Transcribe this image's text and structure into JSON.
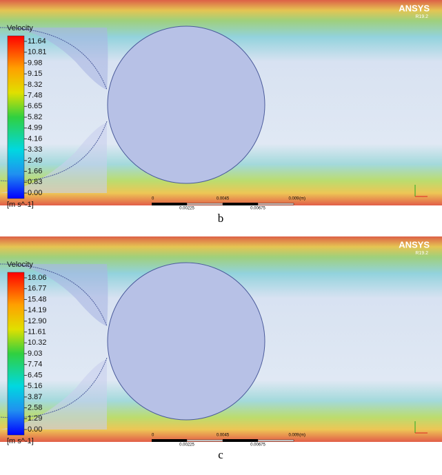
{
  "panels": [
    {
      "legend": {
        "title": "Velocity",
        "ticks": [
          "11.64",
          "10.81",
          "9.98",
          "9.15",
          "8.32",
          "7.48",
          "6.65",
          "5.82",
          "4.99",
          "4.16",
          "3.33",
          "2.49",
          "1.66",
          "0.83",
          "0.00"
        ],
        "unit": "[m s^-1]"
      },
      "logo": "ANSYS",
      "version": "R19.2",
      "scale": {
        "labels": [
          "0",
          "0.0045",
          "0.009",
          "(m)"
        ],
        "sublabels": [
          "0.00225",
          "0.00675"
        ]
      },
      "caption": "b"
    },
    {
      "legend": {
        "title": "Velocity",
        "ticks": [
          "18.06",
          "16.77",
          "15.48",
          "14.19",
          "12.90",
          "11.61",
          "10.32",
          "9.03",
          "7.74",
          "6.45",
          "5.16",
          "3.87",
          "2.58",
          "1.29",
          "0.00"
        ],
        "unit": "[m s^-1]"
      },
      "logo": "ANSYS",
      "version": "R19.2",
      "scale": {
        "labels": [
          "0",
          "0.0045",
          "0.009",
          "(m)"
        ],
        "sublabels": [
          "0.00225",
          "0.00675"
        ]
      },
      "caption": "c"
    }
  ]
}
